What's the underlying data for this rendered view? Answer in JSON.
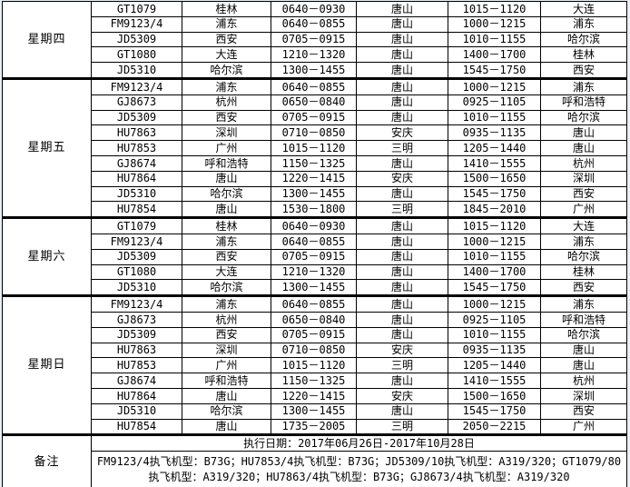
{
  "table": {
    "sections": [
      {
        "day": "星期四",
        "flights": [
          {
            "flight_no": "GT1079",
            "origin": "桂林",
            "time1": "0640－0930",
            "via": "唐山",
            "time2": "1015－1120",
            "dest": "大连"
          },
          {
            "flight_no": "FM9123/4",
            "origin": "浦东",
            "time1": "0640－0855",
            "via": "唐山",
            "time2": "1000－1215",
            "dest": "浦东"
          },
          {
            "flight_no": "JD5309",
            "origin": "西安",
            "time1": "0705－0915",
            "via": "唐山",
            "time2": "1010－1155",
            "dest": "哈尔滨"
          },
          {
            "flight_no": "GT1080",
            "origin": "大连",
            "time1": "1210－1320",
            "via": "唐山",
            "time2": "1400－1700",
            "dest": "桂林"
          },
          {
            "flight_no": "JD5310",
            "origin": "哈尔滨",
            "time1": "1300－1455",
            "via": "唐山",
            "time2": "1545－1750",
            "dest": "西安"
          }
        ]
      },
      {
        "day": "星期五",
        "flights": [
          {
            "flight_no": "FM9123/4",
            "origin": "浦东",
            "time1": "0640－0855",
            "via": "唐山",
            "time2": "1000－1215",
            "dest": "浦东"
          },
          {
            "flight_no": "GJ8673",
            "origin": "杭州",
            "time1": "0650－0840",
            "via": "唐山",
            "time2": "0925－1105",
            "dest": "呼和浩特"
          },
          {
            "flight_no": "JD5309",
            "origin": "西安",
            "time1": "0705－0915",
            "via": "唐山",
            "time2": "1010－1155",
            "dest": "哈尔滨"
          },
          {
            "flight_no": "HU7863",
            "origin": "深圳",
            "time1": "0710－0850",
            "via": "安庆",
            "time2": "0935－1135",
            "dest": "唐山"
          },
          {
            "flight_no": "HU7853",
            "origin": "广州",
            "time1": "1015－1120",
            "via": "三明",
            "time2": "1205－1440",
            "dest": "唐山"
          },
          {
            "flight_no": "GJ8674",
            "origin": "呼和浩特",
            "time1": "1150－1325",
            "via": "唐山",
            "time2": "1410－1555",
            "dest": "杭州"
          },
          {
            "flight_no": "HU7864",
            "origin": "唐山",
            "time1": "1220－1415",
            "via": "安庆",
            "time2": "1500－1650",
            "dest": "深圳"
          },
          {
            "flight_no": "JD5310",
            "origin": "哈尔滨",
            "time1": "1300－1455",
            "via": "唐山",
            "time2": "1545－1750",
            "dest": "西安"
          },
          {
            "flight_no": "HU7854",
            "origin": "唐山",
            "time1": "1530－1800",
            "via": "三明",
            "time2": "1845－2010",
            "dest": "广州"
          }
        ]
      },
      {
        "day": "星期六",
        "flights": [
          {
            "flight_no": "GT1079",
            "origin": "桂林",
            "time1": "0640－0930",
            "via": "唐山",
            "time2": "1015－1120",
            "dest": "大连"
          },
          {
            "flight_no": "FM9123/4",
            "origin": "浦东",
            "time1": "0640－0855",
            "via": "唐山",
            "time2": "1000－1215",
            "dest": "浦东"
          },
          {
            "flight_no": "JD5309",
            "origin": "西安",
            "time1": "0705－0915",
            "via": "唐山",
            "time2": "1010－1155",
            "dest": "哈尔滨"
          },
          {
            "flight_no": "GT1080",
            "origin": "大连",
            "time1": "1210－1320",
            "via": "唐山",
            "time2": "1400－1700",
            "dest": "桂林"
          },
          {
            "flight_no": "JD5310",
            "origin": "哈尔滨",
            "time1": "1300－1455",
            "via": "唐山",
            "time2": "1545－1750",
            "dest": "西安"
          }
        ]
      },
      {
        "day": "星期日",
        "flights": [
          {
            "flight_no": "FM9123/4",
            "origin": "浦东",
            "time1": "0640－0855",
            "via": "唐山",
            "time2": "1000－1215",
            "dest": "浦东"
          },
          {
            "flight_no": "GJ8673",
            "origin": "杭州",
            "time1": "0650－0840",
            "via": "唐山",
            "time2": "0925－1105",
            "dest": "呼和浩特"
          },
          {
            "flight_no": "JD5309",
            "origin": "西安",
            "time1": "0705－0915",
            "via": "唐山",
            "time2": "1010－1155",
            "dest": "哈尔滨"
          },
          {
            "flight_no": "HU7863",
            "origin": "深圳",
            "time1": "0710－0850",
            "via": "安庆",
            "time2": "0935－1135",
            "dest": "唐山"
          },
          {
            "flight_no": "HU7853",
            "origin": "广州",
            "time1": "1015－1120",
            "via": "三明",
            "time2": "1205－1440",
            "dest": "唐山"
          },
          {
            "flight_no": "GJ8674",
            "origin": "呼和浩特",
            "time1": "1150－1325",
            "via": "唐山",
            "time2": "1410－1555",
            "dest": "杭州"
          },
          {
            "flight_no": "HU7864",
            "origin": "唐山",
            "time1": "1220－1415",
            "via": "安庆",
            "time2": "1500－1650",
            "dest": "深圳"
          },
          {
            "flight_no": "JD5310",
            "origin": "哈尔滨",
            "time1": "1300－1455",
            "via": "唐山",
            "time2": "1545－1750",
            "dest": "西安"
          },
          {
            "flight_no": "HU7854",
            "origin": "唐山",
            "time1": "1735－2005",
            "via": "三明",
            "time2": "2050－2215",
            "dest": "广州"
          }
        ]
      }
    ],
    "notes": {
      "label": "备注",
      "validity": "执行日期：2017年06月26日-2017年10月28日",
      "aircraft_lines": [
        "FM9123/4执飞机型：B73G；HU7853/4执飞机型：B73G；JD5309/10执飞机型：A319/320；GT1079/80",
        "执飞机型：A319/320；HU7863/4执飞机型：B73G；GJ8673/4执飞机型：A319/320"
      ]
    }
  },
  "colors": {
    "border": "#000000",
    "text": "#000000",
    "table_background": "#ffffff",
    "sheet_margin": "#e9eff8"
  }
}
